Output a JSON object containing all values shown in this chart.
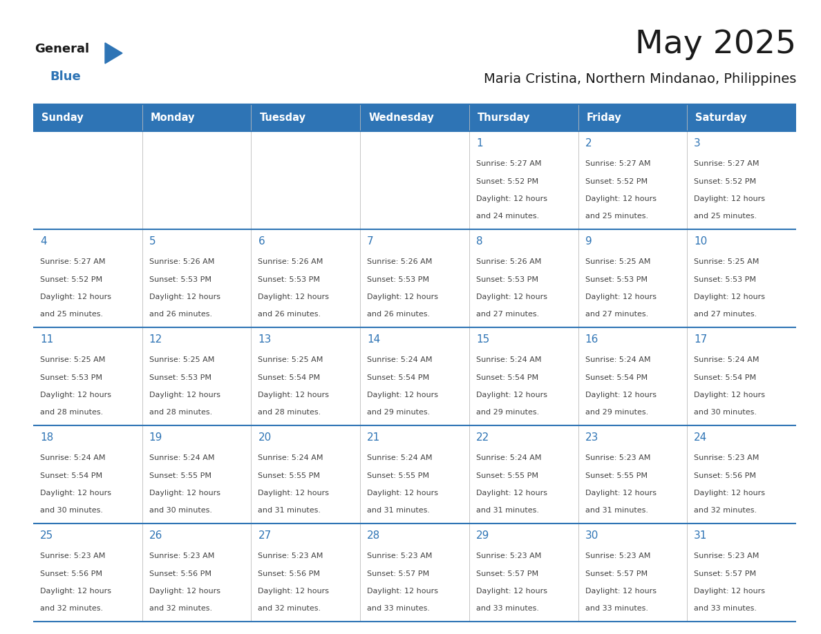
{
  "title": "May 2025",
  "subtitle": "Maria Cristina, Northern Mindanao, Philippines",
  "days_of_week": [
    "Sunday",
    "Monday",
    "Tuesday",
    "Wednesday",
    "Thursday",
    "Friday",
    "Saturday"
  ],
  "header_bg": "#2E74B5",
  "header_text_color": "#FFFFFF",
  "cell_bg": "#FFFFFF",
  "border_color": "#2E74B5",
  "border_color_light": "#5B9BD5",
  "day_number_color": "#2E74B5",
  "cell_text_color": "#404040",
  "logo_general_color": "#1a1a1a",
  "logo_blue_color": "#2E74B5",
  "calendar_data": [
    [
      null,
      null,
      null,
      null,
      {
        "day": 1,
        "sunrise": "5:27 AM",
        "sunset": "5:52 PM",
        "daylight": "12 hours and 24 minutes"
      },
      {
        "day": 2,
        "sunrise": "5:27 AM",
        "sunset": "5:52 PM",
        "daylight": "12 hours and 25 minutes"
      },
      {
        "day": 3,
        "sunrise": "5:27 AM",
        "sunset": "5:52 PM",
        "daylight": "12 hours and 25 minutes"
      }
    ],
    [
      {
        "day": 4,
        "sunrise": "5:27 AM",
        "sunset": "5:52 PM",
        "daylight": "12 hours and 25 minutes"
      },
      {
        "day": 5,
        "sunrise": "5:26 AM",
        "sunset": "5:53 PM",
        "daylight": "12 hours and 26 minutes"
      },
      {
        "day": 6,
        "sunrise": "5:26 AM",
        "sunset": "5:53 PM",
        "daylight": "12 hours and 26 minutes"
      },
      {
        "day": 7,
        "sunrise": "5:26 AM",
        "sunset": "5:53 PM",
        "daylight": "12 hours and 26 minutes"
      },
      {
        "day": 8,
        "sunrise": "5:26 AM",
        "sunset": "5:53 PM",
        "daylight": "12 hours and 27 minutes"
      },
      {
        "day": 9,
        "sunrise": "5:25 AM",
        "sunset": "5:53 PM",
        "daylight": "12 hours and 27 minutes"
      },
      {
        "day": 10,
        "sunrise": "5:25 AM",
        "sunset": "5:53 PM",
        "daylight": "12 hours and 27 minutes"
      }
    ],
    [
      {
        "day": 11,
        "sunrise": "5:25 AM",
        "sunset": "5:53 PM",
        "daylight": "12 hours and 28 minutes"
      },
      {
        "day": 12,
        "sunrise": "5:25 AM",
        "sunset": "5:53 PM",
        "daylight": "12 hours and 28 minutes"
      },
      {
        "day": 13,
        "sunrise": "5:25 AM",
        "sunset": "5:54 PM",
        "daylight": "12 hours and 28 minutes"
      },
      {
        "day": 14,
        "sunrise": "5:24 AM",
        "sunset": "5:54 PM",
        "daylight": "12 hours and 29 minutes"
      },
      {
        "day": 15,
        "sunrise": "5:24 AM",
        "sunset": "5:54 PM",
        "daylight": "12 hours and 29 minutes"
      },
      {
        "day": 16,
        "sunrise": "5:24 AM",
        "sunset": "5:54 PM",
        "daylight": "12 hours and 29 minutes"
      },
      {
        "day": 17,
        "sunrise": "5:24 AM",
        "sunset": "5:54 PM",
        "daylight": "12 hours and 30 minutes"
      }
    ],
    [
      {
        "day": 18,
        "sunrise": "5:24 AM",
        "sunset": "5:54 PM",
        "daylight": "12 hours and 30 minutes"
      },
      {
        "day": 19,
        "sunrise": "5:24 AM",
        "sunset": "5:55 PM",
        "daylight": "12 hours and 30 minutes"
      },
      {
        "day": 20,
        "sunrise": "5:24 AM",
        "sunset": "5:55 PM",
        "daylight": "12 hours and 31 minutes"
      },
      {
        "day": 21,
        "sunrise": "5:24 AM",
        "sunset": "5:55 PM",
        "daylight": "12 hours and 31 minutes"
      },
      {
        "day": 22,
        "sunrise": "5:24 AM",
        "sunset": "5:55 PM",
        "daylight": "12 hours and 31 minutes"
      },
      {
        "day": 23,
        "sunrise": "5:23 AM",
        "sunset": "5:55 PM",
        "daylight": "12 hours and 31 minutes"
      },
      {
        "day": 24,
        "sunrise": "5:23 AM",
        "sunset": "5:56 PM",
        "daylight": "12 hours and 32 minutes"
      }
    ],
    [
      {
        "day": 25,
        "sunrise": "5:23 AM",
        "sunset": "5:56 PM",
        "daylight": "12 hours and 32 minutes"
      },
      {
        "day": 26,
        "sunrise": "5:23 AM",
        "sunset": "5:56 PM",
        "daylight": "12 hours and 32 minutes"
      },
      {
        "day": 27,
        "sunrise": "5:23 AM",
        "sunset": "5:56 PM",
        "daylight": "12 hours and 32 minutes"
      },
      {
        "day": 28,
        "sunrise": "5:23 AM",
        "sunset": "5:57 PM",
        "daylight": "12 hours and 33 minutes"
      },
      {
        "day": 29,
        "sunrise": "5:23 AM",
        "sunset": "5:57 PM",
        "daylight": "12 hours and 33 minutes"
      },
      {
        "day": 30,
        "sunrise": "5:23 AM",
        "sunset": "5:57 PM",
        "daylight": "12 hours and 33 minutes"
      },
      {
        "day": 31,
        "sunrise": "5:23 AM",
        "sunset": "5:57 PM",
        "daylight": "12 hours and 33 minutes"
      }
    ]
  ]
}
